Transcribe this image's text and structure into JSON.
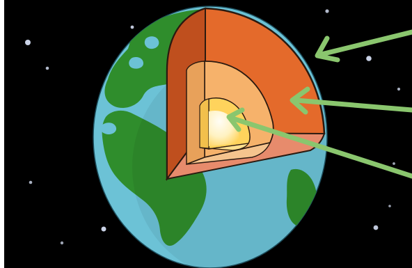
{
  "scene": {
    "space_color": "#000000",
    "ocean_color": "#6cc2d6",
    "land_color": "#2f8d2c",
    "crust_color": "#e46a2b",
    "crust_side_color": "#bf4f1e",
    "mantle_color": "#f6b26b",
    "outer_core_color": "#ffd35c",
    "inner_core_color": "#fff6d8",
    "arrow_color": "#8ac66e"
  },
  "diagram": {
    "layers": [
      {
        "name": "crust"
      },
      {
        "name": "mantle"
      },
      {
        "name": "core"
      }
    ],
    "pointers": [
      {
        "target": "crust"
      },
      {
        "target": "mantle"
      },
      {
        "target": "core"
      }
    ]
  }
}
